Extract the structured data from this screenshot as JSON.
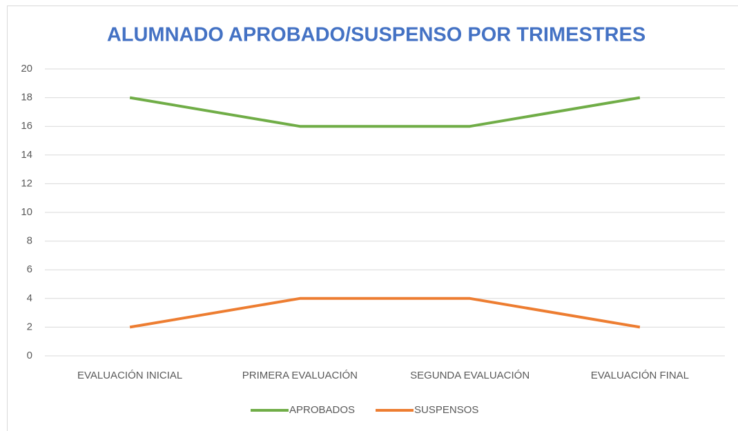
{
  "chart_data": {
    "type": "line",
    "title": "ALUMNADO APROBADO/SUSPENSO POR TRIMESTRES",
    "categories": [
      "EVALUACIÓN INICIAL",
      "PRIMERA EVALUACIÓN",
      "SEGUNDA EVALUACIÓN",
      "EVALUACIÓN FINAL"
    ],
    "series": [
      {
        "name": "APROBADOS",
        "color": "#70ad47",
        "values": [
          18,
          16,
          16,
          18
        ]
      },
      {
        "name": "SUSPENSOS",
        "color": "#ed7d31",
        "values": [
          2,
          4,
          4,
          2
        ]
      }
    ],
    "ylim": [
      0,
      20
    ],
    "yticks": [
      0,
      2,
      4,
      6,
      8,
      10,
      12,
      14,
      16,
      18,
      20
    ],
    "grid": true,
    "legend": "bottom"
  }
}
